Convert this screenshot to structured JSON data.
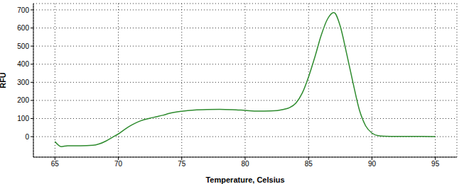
{
  "chart_data": {
    "type": "line",
    "x_label": "Temperature, Celsius",
    "y_label": "RFU",
    "x": [
      65,
      65.5,
      66,
      67,
      68,
      68.5,
      69,
      69.5,
      70,
      70.5,
      71,
      71.5,
      72,
      72.5,
      73,
      73.5,
      74,
      75,
      76,
      77,
      78,
      79,
      80,
      81,
      82,
      83,
      83.5,
      84,
      84.5,
      85,
      85.5,
      86,
      86.5,
      87,
      87.5,
      88,
      88.5,
      89,
      89.5,
      90,
      90.5,
      91,
      92,
      93,
      94,
      95
    ],
    "values": [
      -27,
      -55,
      -50,
      -50,
      -48,
      -40,
      -25,
      -5,
      15,
      40,
      62,
      80,
      93,
      102,
      110,
      118,
      128,
      140,
      147,
      150,
      151,
      149,
      145,
      141,
      142,
      150,
      160,
      185,
      240,
      330,
      440,
      560,
      650,
      685,
      610,
      460,
      300,
      150,
      60,
      20,
      5,
      2,
      1,
      1,
      1,
      0
    ],
    "color": "#2e8b2e",
    "xlim": [
      63.3,
      96.7
    ],
    "ylim": [
      -113,
      735
    ],
    "xticks": [
      65,
      70,
      75,
      80,
      85,
      90,
      95
    ],
    "yticks": [
      0,
      100,
      200,
      300,
      400,
      500,
      600,
      700
    ],
    "grid": true
  }
}
